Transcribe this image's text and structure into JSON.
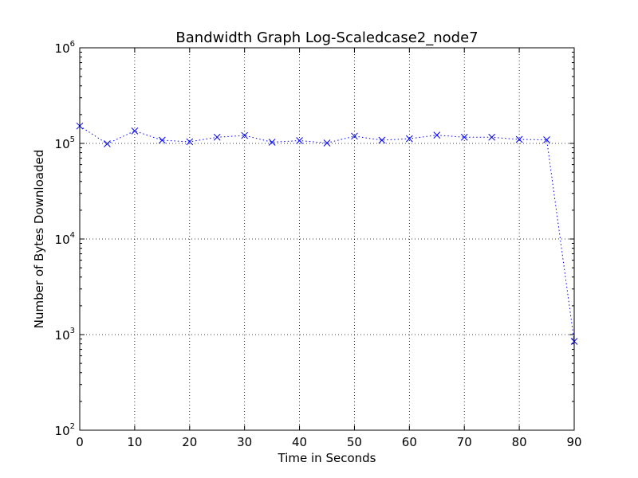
{
  "chart_data": {
    "type": "line",
    "title": "Bandwidth Graph Log-Scaledcase2_node7",
    "xlabel": "Time in Seconds",
    "ylabel": "Number of Bytes Downloaded",
    "x_scale": "linear",
    "y_scale": "log",
    "xlim": [
      0,
      90
    ],
    "ylim": [
      100,
      1000000
    ],
    "x_ticks": [
      0,
      10,
      20,
      30,
      40,
      50,
      60,
      70,
      80,
      90
    ],
    "x_tick_labels": [
      "0",
      "10",
      "20",
      "30",
      "40",
      "50",
      "60",
      "70",
      "80",
      "90"
    ],
    "y_ticks": [
      100,
      1000,
      10000,
      100000,
      1000000
    ],
    "y_tick_labels": [
      {
        "base": "10",
        "exp": "2"
      },
      {
        "base": "10",
        "exp": "3"
      },
      {
        "base": "10",
        "exp": "4"
      },
      {
        "base": "10",
        "exp": "5"
      },
      {
        "base": "10",
        "exp": "6"
      }
    ],
    "grid": true,
    "series": [
      {
        "color": "#0000ff",
        "marker": "x",
        "line_style": "dotted",
        "x": [
          0,
          5,
          10,
          15,
          20,
          25,
          30,
          35,
          40,
          45,
          50,
          55,
          60,
          65,
          70,
          75,
          80,
          85,
          90
        ],
        "y": [
          152000,
          99000,
          135000,
          108000,
          104000,
          116000,
          121000,
          103000,
          107000,
          101000,
          119000,
          108000,
          112000,
          122000,
          116000,
          116000,
          110000,
          109000,
          850
        ]
      }
    ]
  }
}
